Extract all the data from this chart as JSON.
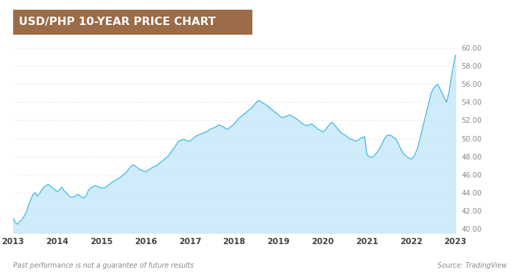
{
  "title": "USD/PHP 10-YEAR PRICE CHART",
  "title_bg_color": "#9C6B47",
  "title_text_color": "#FFFFFF",
  "bg_color": "#FFFFFF",
  "plot_bg_color": "#FFFFFF",
  "line_color": "#4BBDE8",
  "fill_color": "#C8E8F8",
  "dot_grid_color": "#CCCCCC",
  "ylabel_color": "#888888",
  "xlabel_color": "#444444",
  "footnote_left": "Past performance is not a guarantee of future results",
  "footnote_right": "Source: TradingView",
  "ylim": [
    39.5,
    61.5
  ],
  "yticks": [
    40.0,
    42.0,
    44.0,
    46.0,
    48.0,
    50.0,
    52.0,
    54.0,
    56.0,
    58.0,
    60.0
  ],
  "xtick_years": [
    "2013",
    "2014",
    "2015",
    "2016",
    "2017",
    "2018",
    "2019",
    "2020",
    "2021",
    "2022",
    "2023"
  ],
  "data_x": [
    2013.0,
    2013.05,
    2013.1,
    2013.15,
    2013.2,
    2013.25,
    2013.3,
    2013.35,
    2013.4,
    2013.45,
    2013.5,
    2013.55,
    2013.6,
    2013.65,
    2013.7,
    2013.75,
    2013.8,
    2013.85,
    2013.9,
    2013.95,
    2014.0,
    2014.05,
    2014.1,
    2014.15,
    2014.2,
    2014.25,
    2014.3,
    2014.35,
    2014.4,
    2014.45,
    2014.5,
    2014.55,
    2014.6,
    2014.65,
    2014.7,
    2014.75,
    2014.8,
    2014.85,
    2014.9,
    2014.95,
    2015.0,
    2015.05,
    2015.1,
    2015.15,
    2015.2,
    2015.25,
    2015.3,
    2015.35,
    2015.4,
    2015.45,
    2015.5,
    2015.55,
    2015.6,
    2015.65,
    2015.7,
    2015.75,
    2015.8,
    2015.85,
    2015.9,
    2015.95,
    2016.0,
    2016.05,
    2016.1,
    2016.15,
    2016.2,
    2016.25,
    2016.3,
    2016.35,
    2016.4,
    2016.45,
    2016.5,
    2016.55,
    2016.6,
    2016.65,
    2016.7,
    2016.75,
    2016.8,
    2016.85,
    2016.9,
    2016.95,
    2017.0,
    2017.05,
    2017.1,
    2017.15,
    2017.2,
    2017.25,
    2017.3,
    2017.35,
    2017.4,
    2017.45,
    2017.5,
    2017.55,
    2017.6,
    2017.65,
    2017.7,
    2017.75,
    2017.8,
    2017.85,
    2017.9,
    2017.95,
    2018.0,
    2018.05,
    2018.1,
    2018.15,
    2018.2,
    2018.25,
    2018.3,
    2018.35,
    2018.4,
    2018.45,
    2018.5,
    2018.55,
    2018.6,
    2018.65,
    2018.7,
    2018.75,
    2018.8,
    2018.85,
    2018.9,
    2018.95,
    2019.0,
    2019.05,
    2019.1,
    2019.15,
    2019.2,
    2019.25,
    2019.3,
    2019.35,
    2019.4,
    2019.45,
    2019.5,
    2019.55,
    2019.6,
    2019.65,
    2019.7,
    2019.75,
    2019.8,
    2019.85,
    2019.9,
    2019.95,
    2020.0,
    2020.05,
    2020.1,
    2020.15,
    2020.2,
    2020.25,
    2020.3,
    2020.35,
    2020.4,
    2020.45,
    2020.5,
    2020.55,
    2020.6,
    2020.65,
    2020.7,
    2020.75,
    2020.8,
    2020.85,
    2020.9,
    2020.95,
    2021.0,
    2021.05,
    2021.1,
    2021.15,
    2021.2,
    2021.25,
    2021.3,
    2021.35,
    2021.4,
    2021.45,
    2021.5,
    2021.55,
    2021.6,
    2021.65,
    2021.7,
    2021.75,
    2021.8,
    2021.85,
    2021.9,
    2021.95,
    2022.0,
    2022.05,
    2022.1,
    2022.15,
    2022.2,
    2022.25,
    2022.3,
    2022.35,
    2022.4,
    2022.45,
    2022.5,
    2022.55,
    2022.6,
    2022.65,
    2022.7,
    2022.75,
    2022.8,
    2022.85,
    2022.9,
    2022.95,
    2023.0
  ],
  "data_y": [
    41.2,
    40.7,
    40.5,
    40.8,
    41.0,
    41.4,
    41.8,
    42.6,
    43.2,
    43.8,
    44.0,
    43.6,
    43.9,
    44.3,
    44.6,
    44.8,
    44.9,
    44.7,
    44.5,
    44.3,
    44.1,
    44.3,
    44.6,
    44.2,
    44.0,
    43.7,
    43.5,
    43.5,
    43.6,
    43.8,
    43.7,
    43.5,
    43.4,
    43.6,
    44.2,
    44.5,
    44.6,
    44.8,
    44.7,
    44.6,
    44.5,
    44.5,
    44.6,
    44.8,
    45.0,
    45.2,
    45.3,
    45.5,
    45.6,
    45.8,
    46.0,
    46.2,
    46.5,
    46.8,
    47.1,
    47.0,
    46.8,
    46.6,
    46.5,
    46.4,
    46.3,
    46.5,
    46.6,
    46.8,
    46.9,
    47.0,
    47.2,
    47.4,
    47.6,
    47.8,
    48.0,
    48.3,
    48.7,
    49.0,
    49.4,
    49.7,
    49.8,
    49.9,
    49.8,
    49.7,
    49.7,
    49.9,
    50.1,
    50.3,
    50.4,
    50.5,
    50.6,
    50.7,
    50.8,
    51.0,
    51.1,
    51.2,
    51.3,
    51.5,
    51.4,
    51.3,
    51.1,
    51.0,
    51.2,
    51.4,
    51.6,
    51.9,
    52.2,
    52.4,
    52.6,
    52.8,
    53.0,
    53.2,
    53.4,
    53.7,
    54.0,
    54.2,
    54.1,
    53.9,
    53.8,
    53.6,
    53.4,
    53.2,
    53.0,
    52.8,
    52.6,
    52.4,
    52.3,
    52.4,
    52.5,
    52.6,
    52.5,
    52.3,
    52.2,
    52.0,
    51.8,
    51.6,
    51.5,
    51.4,
    51.5,
    51.6,
    51.4,
    51.2,
    51.0,
    50.9,
    50.7,
    50.9,
    51.2,
    51.5,
    51.8,
    51.6,
    51.3,
    51.0,
    50.7,
    50.5,
    50.4,
    50.2,
    50.0,
    49.9,
    49.8,
    49.7,
    49.8,
    50.0,
    50.1,
    50.2,
    48.2,
    48.0,
    47.9,
    48.0,
    48.3,
    48.6,
    49.0,
    49.5,
    50.0,
    50.3,
    50.4,
    50.3,
    50.1,
    50.0,
    49.5,
    49.0,
    48.5,
    48.2,
    48.0,
    47.8,
    47.7,
    47.9,
    48.4,
    49.0,
    50.0,
    51.0,
    52.0,
    53.0,
    54.0,
    55.0,
    55.5,
    55.8,
    56.0,
    55.5,
    55.0,
    54.5,
    54.0,
    55.0,
    56.5,
    58.0,
    59.2
  ]
}
